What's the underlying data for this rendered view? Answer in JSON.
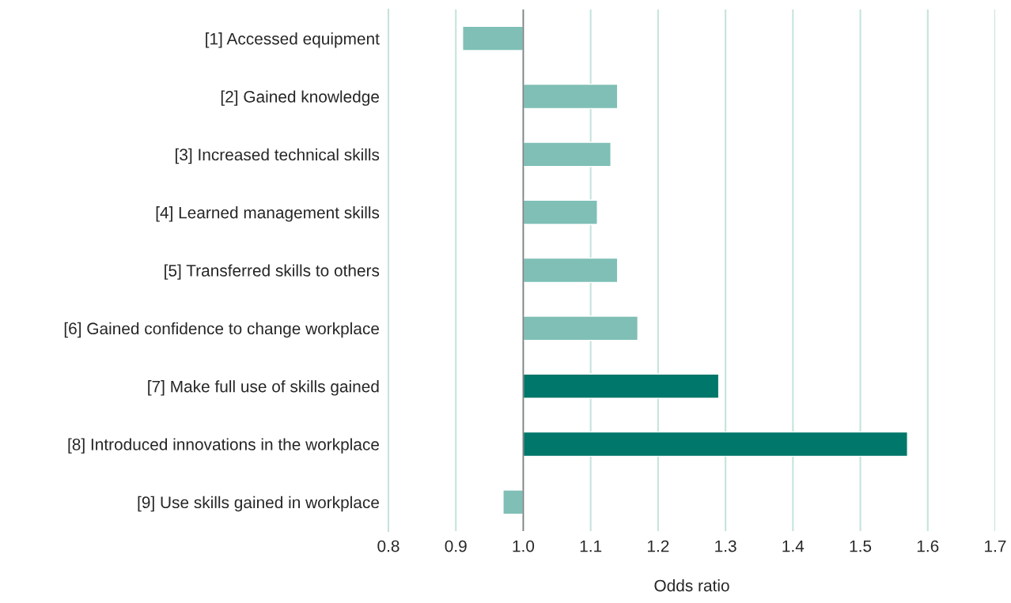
{
  "chart_data": {
    "type": "bar",
    "orientation": "horizontal",
    "xlabel": "Odds ratio",
    "categories": [
      "[1] Accessed equipment",
      "[2] Gained knowledge",
      "[3] Increased technical skills",
      "[4] Learned management skills",
      "[5] Transferred skills to others",
      "[6] Gained confidence to change workplace",
      "[7] Make full use of skills gained",
      "[8] Introduced innovations in the workplace",
      "[9] Use skills gained in workplace"
    ],
    "base": [
      1.0,
      1.0,
      1.0,
      1.0,
      1.0,
      1.0,
      1.0,
      1.0,
      1.0
    ],
    "values": [
      -0.09,
      0.14,
      0.13,
      0.11,
      0.14,
      0.17,
      0.29,
      0.57,
      -0.03
    ],
    "colors": [
      "#7fbfb6",
      "#7fbfb6",
      "#7fbfb6",
      "#7fbfb6",
      "#7fbfb6",
      "#7fbfb6",
      "#00776b",
      "#00776b",
      "#7fbfb6"
    ],
    "xlim": [
      0.8,
      1.7
    ],
    "xticks": [
      0.8,
      0.9,
      {
        "value": 1,
        "label": "1.0"
      },
      1.1,
      1.2,
      1.3,
      1.4,
      1.5,
      1.6,
      1.7
    ],
    "grid": "x",
    "ref_lines": [
      {
        "axis": "x",
        "value": 1.0,
        "color": "#808080"
      }
    ]
  }
}
